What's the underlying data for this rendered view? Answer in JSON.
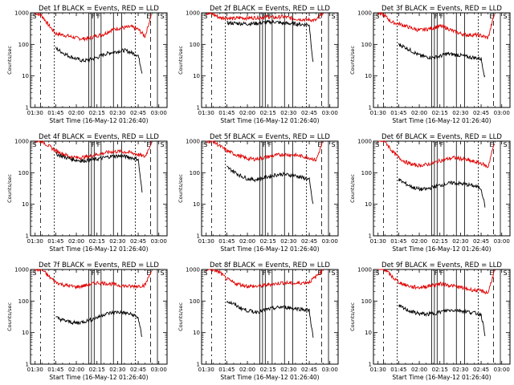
{
  "figure": {
    "panels": [
      {
        "title": "Det 1f  BLACK = Events, RED = LLD"
      },
      {
        "title": "Det 2f  BLACK = Events, RED = LLD"
      },
      {
        "title": "Det 3f  BLACK = Events, RED = LLD"
      },
      {
        "title": "Det 4f  BLACK = Events, RED = LLD"
      },
      {
        "title": "Det 5f  BLACK = Events, RED = LLD"
      },
      {
        "title": "Det 6f  BLACK = Events, RED = LLD"
      },
      {
        "title": "Det 7f  BLACK = Events, RED = LLD"
      },
      {
        "title": "Det 8f  BLACK = Events, RED = LLD"
      },
      {
        "title": "Det 9f  BLACK = Events, RED = LLD"
      }
    ],
    "xlabel": "Start Time (16-May-12 01:26:40)",
    "ylabel": "Counts/sec",
    "xticks": [
      "01:30",
      "01:45",
      "02:00",
      "02:15",
      "02:30",
      "02:45",
      "03:00"
    ],
    "yticks": [
      "1",
      "10",
      "100",
      "1000"
    ],
    "markers": [
      "S",
      "F",
      "F",
      "E",
      "S"
    ]
  },
  "chart_data": [
    {
      "type": "line",
      "title": "Det 1f  BLACK = Events, RED = LLD",
      "xlabel": "Start Time (16-May-12 01:26:40)",
      "ylabel": "Counts/sec",
      "xlim": [
        "01:26:40",
        "03:06"
      ],
      "ylim": [
        1,
        1000
      ],
      "yscale": "log",
      "series": [
        {
          "name": "LLD",
          "color": "#e00000",
          "x": [
            "01:30",
            "01:35",
            "01:40",
            "01:45",
            "01:50",
            "01:55",
            "02:00",
            "02:05",
            "02:10",
            "02:15",
            "02:20",
            "02:25",
            "02:30",
            "02:35",
            "02:40",
            "02:45",
            "02:50",
            "02:55"
          ],
          "values": [
            1000,
            800,
            400,
            220,
            200,
            180,
            160,
            150,
            160,
            190,
            210,
            280,
            320,
            340,
            360,
            300,
            180,
            1000
          ]
        },
        {
          "name": "Events",
          "color": "#000000",
          "x": [
            "01:45",
            "01:50",
            "01:55",
            "02:00",
            "02:05",
            "02:10",
            "02:15",
            "02:20",
            "02:25",
            "02:30",
            "02:35",
            "02:40",
            "02:45",
            "02:48"
          ],
          "values": [
            75,
            55,
            42,
            35,
            30,
            33,
            38,
            48,
            55,
            60,
            65,
            55,
            45,
            12
          ]
        }
      ]
    },
    {
      "type": "line",
      "title": "Det 2f  BLACK = Events, RED = LLD",
      "xlabel": "Start Time (16-May-12 01:26:40)",
      "ylabel": "Counts/sec",
      "xlim": [
        "01:26:40",
        "03:06"
      ],
      "ylim": [
        1,
        1000
      ],
      "yscale": "log",
      "series": [
        {
          "name": "LLD",
          "color": "#e00000",
          "x": [
            "01:30",
            "01:35",
            "01:40",
            "01:45",
            "01:50",
            "01:55",
            "02:00",
            "02:05",
            "02:10",
            "02:15",
            "02:20",
            "02:25",
            "02:30",
            "02:35",
            "02:40",
            "02:45",
            "02:50",
            "02:55"
          ],
          "values": [
            1000,
            900,
            700,
            700,
            650,
            700,
            680,
            700,
            720,
            750,
            700,
            760,
            700,
            650,
            620,
            600,
            580,
            1000
          ]
        },
        {
          "name": "Events",
          "color": "#000000",
          "x": [
            "01:45",
            "01:50",
            "01:55",
            "02:00",
            "02:05",
            "02:10",
            "02:15",
            "02:20",
            "02:25",
            "02:30",
            "02:35",
            "02:40",
            "02:45",
            "02:48"
          ],
          "values": [
            480,
            470,
            460,
            450,
            460,
            480,
            500,
            520,
            470,
            460,
            450,
            430,
            420,
            20
          ]
        }
      ]
    },
    {
      "type": "line",
      "title": "Det 3f  BLACK = Events, RED = LLD",
      "xlabel": "Start Time (16-May-12 01:26:40)",
      "ylabel": "Counts/sec",
      "xlim": [
        "01:26:40",
        "03:06"
      ],
      "ylim": [
        1,
        1000
      ],
      "yscale": "log",
      "series": [
        {
          "name": "LLD",
          "color": "#e00000",
          "x": [
            "01:30",
            "01:35",
            "01:40",
            "01:45",
            "01:50",
            "01:55",
            "02:00",
            "02:05",
            "02:10",
            "02:15",
            "02:20",
            "02:25",
            "02:30",
            "02:35",
            "02:40",
            "02:45",
            "02:50",
            "02:55"
          ],
          "values": [
            1000,
            800,
            500,
            450,
            380,
            320,
            280,
            300,
            330,
            380,
            330,
            260,
            220,
            200,
            200,
            190,
            160,
            1000
          ]
        },
        {
          "name": "Events",
          "color": "#000000",
          "x": [
            "01:45",
            "01:50",
            "01:55",
            "02:00",
            "02:05",
            "02:10",
            "02:15",
            "02:20",
            "02:25",
            "02:30",
            "02:35",
            "02:40",
            "02:45",
            "02:48"
          ],
          "values": [
            100,
            80,
            60,
            45,
            40,
            38,
            42,
            50,
            48,
            45,
            40,
            38,
            35,
            8
          ]
        }
      ]
    },
    {
      "type": "line",
      "title": "Det 4f  BLACK = Events, RED = LLD",
      "xlabel": "Start Time (16-May-12 01:26:40)",
      "ylabel": "Counts/sec",
      "xlim": [
        "01:26:40",
        "03:06"
      ],
      "ylim": [
        1,
        1000
      ],
      "yscale": "log",
      "series": [
        {
          "name": "LLD",
          "color": "#e00000",
          "x": [
            "01:30",
            "01:35",
            "01:40",
            "01:45",
            "01:50",
            "01:55",
            "02:00",
            "02:05",
            "02:10",
            "02:15",
            "02:20",
            "02:25",
            "02:30",
            "02:35",
            "02:40",
            "02:45",
            "02:50",
            "02:55"
          ],
          "values": [
            1000,
            1000,
            700,
            500,
            400,
            330,
            300,
            310,
            330,
            380,
            420,
            460,
            470,
            460,
            430,
            380,
            320,
            1000
          ]
        },
        {
          "name": "Events",
          "color": "#000000",
          "x": [
            "01:45",
            "01:50",
            "01:55",
            "02:00",
            "02:05",
            "02:10",
            "02:15",
            "02:20",
            "02:25",
            "02:30",
            "02:35",
            "02:40",
            "02:45",
            "02:48"
          ],
          "values": [
            400,
            330,
            280,
            250,
            240,
            250,
            270,
            300,
            330,
            340,
            330,
            300,
            270,
            20
          ]
        }
      ]
    },
    {
      "type": "line",
      "title": "Det 5f  BLACK = Events, RED = LLD",
      "xlabel": "Start Time (16-May-12 01:26:40)",
      "ylabel": "Counts/sec",
      "xlim": [
        "01:26:40",
        "03:06"
      ],
      "ylim": [
        1,
        1000
      ],
      "yscale": "log",
      "series": [
        {
          "name": "LLD",
          "color": "#e00000",
          "x": [
            "01:30",
            "01:35",
            "01:40",
            "01:45",
            "01:50",
            "01:55",
            "02:00",
            "02:05",
            "02:10",
            "02:15",
            "02:20",
            "02:25",
            "02:30",
            "02:35",
            "02:40",
            "02:45",
            "02:50",
            "02:55"
          ],
          "values": [
            1000,
            1000,
            700,
            500,
            400,
            330,
            280,
            270,
            290,
            320,
            350,
            380,
            370,
            360,
            330,
            300,
            250,
            1000
          ]
        },
        {
          "name": "Events",
          "color": "#000000",
          "x": [
            "01:45",
            "01:50",
            "01:55",
            "02:00",
            "02:05",
            "02:10",
            "02:15",
            "02:20",
            "02:25",
            "02:30",
            "02:35",
            "02:40",
            "02:45",
            "02:48"
          ],
          "values": [
            150,
            110,
            80,
            65,
            60,
            65,
            75,
            85,
            90,
            85,
            80,
            70,
            60,
            8
          ]
        }
      ]
    },
    {
      "type": "line",
      "title": "Det 6f  BLACK = Events, RED = LLD",
      "xlabel": "Start Time (16-May-12 01:26:40)",
      "ylabel": "Counts/sec",
      "xlim": [
        "01:26:40",
        "03:06"
      ],
      "ylim": [
        1,
        1000
      ],
      "yscale": "log",
      "series": [
        {
          "name": "LLD",
          "color": "#e00000",
          "x": [
            "01:30",
            "01:35",
            "01:40",
            "01:45",
            "01:50",
            "01:55",
            "02:00",
            "02:05",
            "02:10",
            "02:15",
            "02:20",
            "02:25",
            "02:30",
            "02:35",
            "02:40",
            "02:45",
            "02:50",
            "02:55"
          ],
          "values": [
            1000,
            1000,
            500,
            300,
            220,
            180,
            170,
            180,
            200,
            240,
            270,
            300,
            280,
            250,
            220,
            200,
            150,
            1000
          ]
        },
        {
          "name": "Events",
          "color": "#000000",
          "x": [
            "01:45",
            "01:50",
            "01:55",
            "02:00",
            "02:05",
            "02:10",
            "02:15",
            "02:20",
            "02:25",
            "02:30",
            "02:35",
            "02:40",
            "02:45",
            "02:48"
          ],
          "values": [
            60,
            45,
            35,
            30,
            30,
            35,
            40,
            45,
            48,
            45,
            42,
            38,
            32,
            8
          ]
        }
      ]
    },
    {
      "type": "line",
      "title": "Det 7f  BLACK = Events, RED = LLD",
      "xlabel": "Start Time (16-May-12 01:26:40)",
      "ylabel": "Counts/sec",
      "xlim": [
        "01:26:40",
        "03:06"
      ],
      "ylim": [
        1,
        1000
      ],
      "yscale": "log",
      "series": [
        {
          "name": "LLD",
          "color": "#e00000",
          "x": [
            "01:30",
            "01:35",
            "01:40",
            "01:45",
            "01:50",
            "01:55",
            "02:00",
            "02:05",
            "02:10",
            "02:15",
            "02:20",
            "02:25",
            "02:30",
            "02:35",
            "02:40",
            "02:45",
            "02:50",
            "02:55"
          ],
          "values": [
            1000,
            1000,
            600,
            400,
            330,
            300,
            280,
            300,
            340,
            380,
            370,
            350,
            320,
            300,
            290,
            300,
            320,
            1000
          ]
        },
        {
          "name": "Events",
          "color": "#000000",
          "x": [
            "01:45",
            "01:50",
            "01:55",
            "02:00",
            "02:05",
            "02:10",
            "02:15",
            "02:20",
            "02:25",
            "02:30",
            "02:35",
            "02:40",
            "02:45",
            "02:48"
          ],
          "values": [
            30,
            25,
            22,
            20,
            22,
            25,
            30,
            38,
            42,
            45,
            42,
            38,
            30,
            6
          ]
        }
      ]
    },
    {
      "type": "line",
      "title": "Det 8f  BLACK = Events, RED = LLD",
      "xlabel": "Start Time (16-May-12 01:26:40)",
      "ylabel": "Counts/sec",
      "xlim": [
        "01:26:40",
        "03:06"
      ],
      "ylim": [
        1,
        1000
      ],
      "yscale": "log",
      "series": [
        {
          "name": "LLD",
          "color": "#e00000",
          "x": [
            "01:30",
            "01:35",
            "01:40",
            "01:45",
            "01:50",
            "01:55",
            "02:00",
            "02:05",
            "02:10",
            "02:15",
            "02:20",
            "02:25",
            "02:30",
            "02:35",
            "02:40",
            "02:45",
            "02:50",
            "02:55"
          ],
          "values": [
            1000,
            1000,
            800,
            500,
            380,
            330,
            300,
            290,
            300,
            330,
            350,
            380,
            370,
            360,
            380,
            400,
            600,
            1000
          ]
        },
        {
          "name": "Events",
          "color": "#000000",
          "x": [
            "01:45",
            "01:50",
            "01:55",
            "02:00",
            "02:05",
            "02:10",
            "02:15",
            "02:20",
            "02:25",
            "02:30",
            "02:35",
            "02:40",
            "02:45",
            "02:48"
          ],
          "values": [
            100,
            80,
            60,
            50,
            45,
            48,
            55,
            60,
            65,
            62,
            58,
            55,
            50,
            6
          ]
        }
      ]
    },
    {
      "type": "line",
      "title": "Det 9f  BLACK = Events, RED = LLD",
      "xlabel": "Start Time (16-May-12 01:26:40)",
      "ylabel": "Counts/sec",
      "xlim": [
        "01:26:40",
        "03:06"
      ],
      "ylim": [
        1,
        1000
      ],
      "yscale": "log",
      "series": [
        {
          "name": "LLD",
          "color": "#e00000",
          "x": [
            "01:30",
            "01:35",
            "01:40",
            "01:45",
            "01:50",
            "01:55",
            "02:00",
            "02:05",
            "02:10",
            "02:15",
            "02:20",
            "02:25",
            "02:30",
            "02:35",
            "02:40",
            "02:45",
            "02:50",
            "02:55"
          ],
          "values": [
            1000,
            1000,
            600,
            400,
            320,
            280,
            270,
            290,
            320,
            350,
            330,
            300,
            270,
            240,
            220,
            210,
            180,
            1000
          ]
        },
        {
          "name": "Events",
          "color": "#000000",
          "x": [
            "01:45",
            "01:50",
            "01:55",
            "02:00",
            "02:05",
            "02:10",
            "02:15",
            "02:20",
            "02:25",
            "02:30",
            "02:35",
            "02:40",
            "02:45",
            "02:48"
          ],
          "values": [
            70,
            55,
            45,
            40,
            38,
            40,
            45,
            50,
            52,
            50,
            46,
            42,
            38,
            8
          ]
        }
      ]
    }
  ]
}
